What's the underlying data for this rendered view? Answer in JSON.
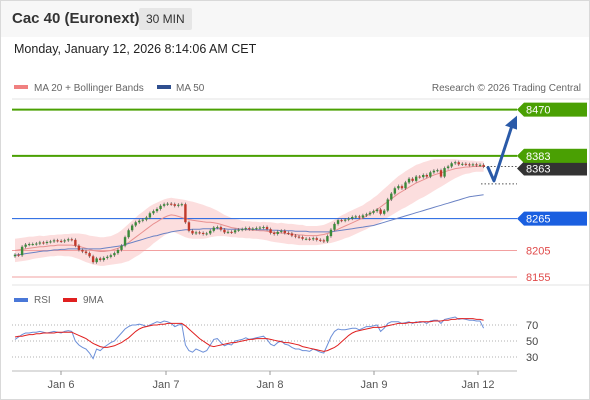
{
  "header": {
    "title": "Cac 40 (Euronext)",
    "period": "30 MIN",
    "timestamp": "Monday, January 12, 2026 8:14:06 AM CET"
  },
  "legend": {
    "ma20": "MA 20 + Bollinger Bands",
    "ma50": "MA 50",
    "credit": "Research © 2026 Trading Central"
  },
  "rsi_legend": {
    "rsi": "RSI",
    "ma": "9MA"
  },
  "colors": {
    "green": "#4aa003",
    "blue": "#1a5fe0",
    "red": "#e85555",
    "dark": "#333333",
    "bull": "#3a8a3a",
    "bear": "#c0392b",
    "band": "#fbd3d3",
    "ma20": "#e89090",
    "ma50": "#6a82c4",
    "arrow": "#2a5aa8",
    "rsi": "#6c8fd8",
    "rsi_ma": "#e02020"
  },
  "chart_data": {
    "type": "line",
    "x_axis_labels": [
      "Jan 6",
      "Jan 7",
      "Jan 8",
      "Jan 9",
      "Jan 12"
    ],
    "ylim": [
      8140,
      8490
    ],
    "levels": [
      {
        "label": "8470",
        "value": 8470,
        "style": "resistance-2"
      },
      {
        "label": "8383",
        "value": 8383,
        "style": "resistance-1"
      },
      {
        "label": "8363",
        "value": 8363,
        "style": "last"
      },
      {
        "label": "8265",
        "value": 8265,
        "style": "pivot"
      },
      {
        "label": "8205",
        "value": 8205,
        "style": "support-1"
      },
      {
        "label": "8155",
        "value": 8155,
        "style": "support-2"
      }
    ],
    "close": [
      8197,
      8196,
      8212,
      8216,
      8217,
      8217,
      8218,
      8220,
      8219,
      8221,
      8222,
      8224,
      8223,
      8222,
      8224,
      8226,
      8225,
      8214,
      8206,
      8203,
      8200,
      8194,
      8183,
      8190,
      8187,
      8191,
      8193,
      8196,
      8200,
      8206,
      8214,
      8230,
      8243,
      8252,
      8258,
      8261,
      8263,
      8267,
      8275,
      8279,
      8283,
      8289,
      8292,
      8293,
      8292,
      8289,
      8291,
      8292,
      8258,
      8242,
      8237,
      8239,
      8238,
      8236,
      8237,
      8242,
      8248,
      8249,
      8244,
      8239,
      8240,
      8239,
      8243,
      8244,
      8245,
      8247,
      8245,
      8246,
      8247,
      8248,
      8249,
      8245,
      8238,
      8236,
      8240,
      8242,
      8238,
      8237,
      8233,
      8231,
      8230,
      8227,
      8227,
      8226,
      8228,
      8225,
      8224,
      8222,
      8232,
      8244,
      8255,
      8262,
      8261,
      8263,
      8265,
      8268,
      8269,
      8267,
      8271,
      8273,
      8276,
      8279,
      8282,
      8274,
      8280,
      8301,
      8312,
      8322,
      8326,
      8322,
      8333,
      8340,
      8336,
      8344,
      8343,
      8347,
      8344,
      8352,
      8355,
      8356,
      8344,
      8360,
      8363,
      8369,
      8371,
      8367,
      8368,
      8367,
      8366,
      8367,
      8365,
      8366,
      8363
    ],
    "ma20": [
      8205,
      8206,
      8207,
      8208,
      8209,
      8210,
      8211,
      8212,
      8212,
      8213,
      8214,
      8214,
      8215,
      8215,
      8215,
      8215,
      8215,
      8214,
      8213,
      8211,
      8209,
      8207,
      8205,
      8204,
      8203,
      8203,
      8204,
      8205,
      8207,
      8209,
      8212,
      8216,
      8220,
      8225,
      8230,
      8235,
      8240,
      8245,
      8250,
      8255,
      8259,
      8263,
      8267,
      8270,
      8272,
      8271,
      8269,
      8267,
      8265,
      8263,
      8262,
      8261,
      8260,
      8259,
      8258,
      8258,
      8257,
      8256,
      8254,
      8252,
      8250,
      8248,
      8247,
      8246,
      8245,
      8244,
      8244,
      8243,
      8243,
      8242,
      8242,
      8241,
      8240,
      8239,
      8238,
      8238,
      8237,
      8236,
      8236,
      8235,
      8234,
      8234,
      8233,
      8233,
      8233,
      8233,
      8234,
      8235,
      8237,
      8239,
      8242,
      8245,
      8248,
      8251,
      8254,
      8257,
      8260,
      8263,
      8266,
      8270,
      8274,
      8278,
      8282,
      8287,
      8292,
      8297,
      8302,
      8307,
      8312,
      8316,
      8320,
      8324,
      8328,
      8332,
      8335,
      8338,
      8341,
      8344,
      8347,
      8349,
      8351,
      8353,
      8355,
      8357,
      8359,
      8360,
      8361,
      8362,
      8362,
      8363,
      8363,
      8363,
      8363
    ],
    "ma50": [
      8196,
      8197,
      8198,
      8199,
      8200,
      8201,
      8202,
      8203,
      8204,
      8204,
      8205,
      8206,
      8206,
      8207,
      8207,
      8208,
      8208,
      8208,
      8208,
      8208,
      8208,
      8208,
      8208,
      8208,
      8208,
      8209,
      8210,
      8211,
      8212,
      8213,
      8214,
      8216,
      8218,
      8220,
      8222,
      8224,
      8226,
      8228,
      8230,
      8232,
      8233,
      8235,
      8237,
      8238,
      8240,
      8241,
      8242,
      8243,
      8244,
      8244,
      8245,
      8245,
      8245,
      8246,
      8246,
      8246,
      8246,
      8246,
      8246,
      8246,
      8245,
      8245,
      8245,
      8245,
      8245,
      8245,
      8245,
      8245,
      8244,
      8244,
      8244,
      8244,
      8243,
      8243,
      8243,
      8242,
      8242,
      8242,
      8242,
      8241,
      8241,
      8241,
      8241,
      8240,
      8240,
      8240,
      8240,
      8240,
      8240,
      8240,
      8241,
      8242,
      8243,
      8244,
      8245,
      8246,
      8247,
      8248,
      8249,
      8250,
      8251,
      8252,
      8254,
      8256,
      8258,
      8260,
      8262,
      8264,
      8266,
      8268,
      8270,
      8272,
      8274,
      8276,
      8278,
      8280,
      8282,
      8284,
      8286,
      8288,
      8290,
      8292,
      8294,
      8296,
      8298,
      8300,
      8302,
      8304,
      8306,
      8307,
      8308,
      8309,
      8310
    ],
    "bb_width": [
      22,
      22,
      22,
      22,
      22,
      21,
      21,
      21,
      20,
      20,
      20,
      20,
      20,
      20,
      21,
      21,
      22,
      23,
      24,
      25,
      26,
      26,
      27,
      27,
      27,
      27,
      27,
      27,
      28,
      29,
      31,
      33,
      35,
      36,
      37,
      38,
      38,
      38,
      38,
      37,
      36,
      35,
      34,
      33,
      32,
      32,
      33,
      34,
      35,
      35,
      35,
      34,
      33,
      32,
      30,
      28,
      26,
      24,
      22,
      20,
      19,
      18,
      17,
      17,
      16,
      16,
      16,
      16,
      16,
      16,
      17,
      17,
      18,
      18,
      18,
      19,
      19,
      19,
      19,
      19,
      19,
      19,
      18,
      18,
      18,
      18,
      18,
      18,
      19,
      20,
      21,
      22,
      23,
      23,
      24,
      24,
      24,
      24,
      24,
      25,
      25,
      26,
      27,
      28,
      29,
      30,
      31,
      32,
      33,
      33,
      34,
      34,
      34,
      34,
      33,
      33,
      32,
      31,
      30,
      28,
      26,
      24,
      22,
      20,
      18,
      16,
      14,
      13,
      12,
      11,
      10,
      10,
      10
    ],
    "projection": [
      8363,
      8336,
      8455
    ],
    "rsi": {
      "ticks": [
        70,
        50,
        30
      ],
      "ylim": [
        15,
        90
      ],
      "values": [
        52,
        55,
        58,
        60,
        60,
        61,
        61,
        62,
        61,
        60,
        61,
        62,
        61,
        60,
        62,
        63,
        62,
        50,
        45,
        42,
        40,
        35,
        28,
        40,
        38,
        42,
        45,
        48,
        50,
        55,
        60,
        65,
        68,
        70,
        70,
        71,
        70,
        68,
        70,
        72,
        74,
        73,
        75,
        74,
        72,
        68,
        70,
        71,
        45,
        38,
        36,
        40,
        38,
        36,
        38,
        45,
        52,
        53,
        48,
        44,
        46,
        45,
        50,
        51,
        52,
        54,
        52,
        53,
        54,
        55,
        56,
        52,
        46,
        44,
        48,
        50,
        46,
        45,
        42,
        40,
        40,
        38,
        38,
        37,
        40,
        38,
        36,
        35,
        45,
        55,
        62,
        65,
        64,
        64,
        65,
        66,
        66,
        64,
        66,
        68,
        68,
        69,
        70,
        62,
        66,
        72,
        74,
        74,
        74,
        72,
        73,
        74,
        72,
        74,
        73,
        74,
        72,
        75,
        76,
        76,
        72,
        77,
        78,
        79,
        80,
        77,
        78,
        77,
        76,
        76,
        75,
        75,
        66
      ],
      "ma": [
        55,
        56,
        56,
        57,
        58,
        58,
        59,
        59,
        60,
        60,
        60,
        60,
        61,
        61,
        61,
        61,
        61,
        59,
        57,
        55,
        53,
        50,
        47,
        45,
        43,
        42,
        42,
        43,
        44,
        46,
        48,
        51,
        54,
        58,
        62,
        65,
        67,
        68,
        69,
        70,
        70,
        71,
        71,
        72,
        72,
        72,
        72,
        72,
        69,
        65,
        61,
        57,
        53,
        50,
        47,
        44,
        43,
        44,
        45,
        46,
        47,
        48,
        48,
        49,
        50,
        51,
        52,
        52,
        53,
        53,
        53,
        53,
        52,
        51,
        50,
        49,
        48,
        48,
        47,
        46,
        45,
        43,
        42,
        41,
        40,
        39,
        38,
        37,
        38,
        40,
        42,
        45,
        49,
        53,
        57,
        60,
        62,
        63,
        64,
        65,
        66,
        67,
        67,
        67,
        68,
        69,
        70,
        71,
        72,
        72,
        72,
        73,
        73,
        73,
        74,
        74,
        74,
        74,
        75,
        75,
        75,
        76,
        76,
        77,
        77,
        78,
        78,
        78,
        78,
        78,
        77,
        77,
        76
      ]
    }
  }
}
